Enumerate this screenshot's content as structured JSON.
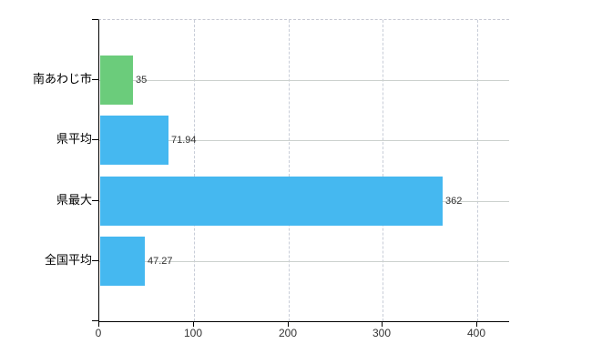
{
  "chart_data": {
    "type": "bar",
    "orientation": "horizontal",
    "title": "",
    "categories": [
      "南あわじ市",
      "県平均",
      "県最大",
      "全国平均"
    ],
    "series": [
      {
        "name": "",
        "values": [
          35,
          71.94,
          362,
          47.27
        ]
      }
    ],
    "value_labels": [
      "35",
      "71.94",
      "362",
      "47.27"
    ],
    "bar_colors": [
      "#6bcc7b",
      "#45b8f0",
      "#45b8f0",
      "#45b8f0"
    ],
    "x_tick_labels": [
      "0",
      "100",
      "200",
      "300",
      "400"
    ],
    "x_tick_values": [
      0,
      100,
      200,
      300,
      400
    ],
    "xlim": [
      0,
      433.7
    ],
    "grid": true,
    "legend_position": "none",
    "colors": {
      "background": "#ffffff",
      "axis": "#000000",
      "horizontal_gridline": "#ccd1ce",
      "vertical_gridline": "#c8cdd8",
      "category_label": "#000000",
      "tick_label": "#333333",
      "value_label": "#303030",
      "bar_green": "#6bcc7b",
      "bar_blue": "#45b8f0"
    }
  }
}
